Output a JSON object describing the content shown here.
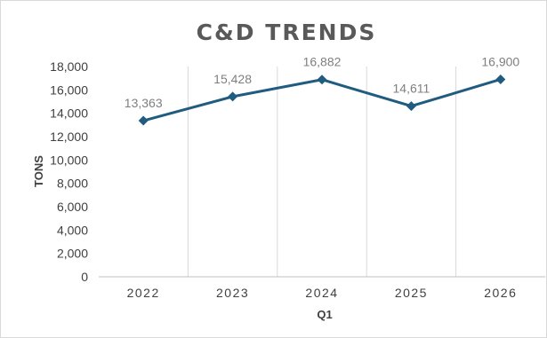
{
  "chart_data": {
    "type": "line",
    "title": "C&D TRENDS",
    "xlabel": "Q1",
    "ylabel": "TONS",
    "categories": [
      "2022",
      "2023",
      "2024",
      "2025",
      "2026"
    ],
    "series": [
      {
        "values": [
          13363,
          15428,
          16882,
          14611,
          16900
        ],
        "data_labels": [
          "13,363",
          "15,428",
          "16,882",
          "14,611",
          "16,900"
        ],
        "color": "#1f5c7f",
        "marker": "diamond"
      }
    ],
    "ylim": [
      0,
      18000
    ],
    "yticks": [
      0,
      2000,
      4000,
      6000,
      8000,
      10000,
      12000,
      14000,
      16000,
      18000
    ],
    "ytick_labels": [
      "0",
      "2,000",
      "4,000",
      "6,000",
      "8,000",
      "10,000",
      "12,000",
      "14,000",
      "16,000",
      "18,000"
    ],
    "grid": {
      "vertical": true,
      "horizontal": false
    },
    "legend": "none"
  }
}
